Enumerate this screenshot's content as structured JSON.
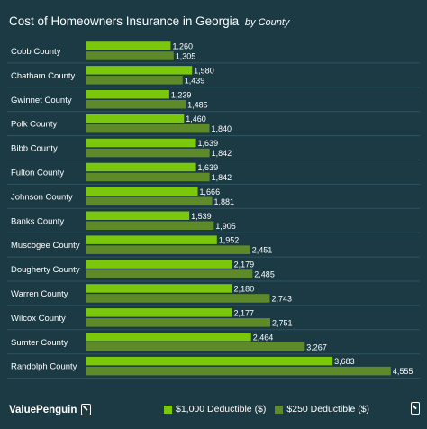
{
  "chart_data": {
    "type": "bar",
    "orientation": "horizontal",
    "title": "Cost of Homeowners Insurance in Georgia",
    "subtitle": "by County",
    "categories": [
      "Cobb County",
      "Chatham County",
      "Gwinnet County",
      "Polk County",
      "Bibb County",
      "Fulton County",
      "Johnson County",
      "Banks County",
      "Muscogee County",
      "Dougherty County",
      "Warren County",
      "Wilcox County",
      "Sumter County",
      "Randolph County"
    ],
    "series": [
      {
        "name": "$1,000 Deductible ($)",
        "color": "#7ac70c",
        "values": [
          1260,
          1580,
          1239,
          1460,
          1639,
          1639,
          1666,
          1539,
          1952,
          2179,
          2180,
          2177,
          2464,
          3683
        ],
        "labels": [
          "1,260",
          "1,580",
          "1,239",
          "1,460",
          "1,639",
          "1,639",
          "1,666",
          "1,539",
          "1,952",
          "2,179",
          "2,180",
          "2,177",
          "2,464",
          "3,683"
        ]
      },
      {
        "name": "$250 Deductible ($)",
        "color": "#5f8a2a",
        "values": [
          1305,
          1439,
          1485,
          1840,
          1842,
          1842,
          1881,
          1905,
          2451,
          2485,
          2743,
          2751,
          3267,
          4555
        ],
        "labels": [
          "1,305",
          "1,439",
          "1,485",
          "1,840",
          "1,842",
          "1,842",
          "1,881",
          "1,905",
          "2,451",
          "2,485",
          "2,743",
          "2,751",
          "3,267",
          "4,555"
        ]
      }
    ],
    "xlim": [
      0,
      4800
    ],
    "grid": false,
    "legend_position": "bottom"
  },
  "brand": {
    "name": "ValuePenguin"
  },
  "colors": {
    "background": "#1b3a44",
    "row_separator": "#2c5562"
  }
}
